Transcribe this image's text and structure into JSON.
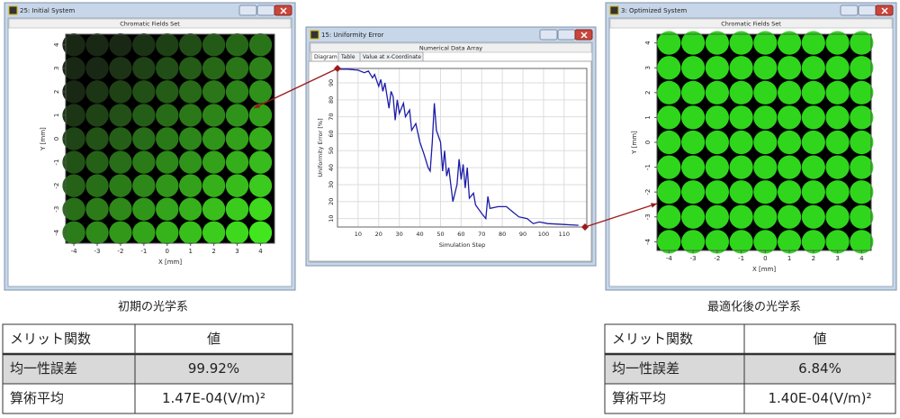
{
  "windows": [
    {
      "title": "25: Initial System",
      "header": "Chromatic Fields Set",
      "x_label": "X [mm]",
      "y_label": "Y [mm]",
      "xticks": [
        -4,
        -3,
        -2,
        -1,
        0,
        1,
        2,
        3,
        4
      ],
      "yticks": [
        -4,
        -3,
        -2,
        -1,
        0,
        1,
        2,
        3,
        4
      ],
      "xlim": [
        -4.35,
        4.6
      ],
      "ylim": [
        -4.45,
        4.45
      ]
    },
    {
      "title": "15: Uniformity Error",
      "header": "Numerical Data Array",
      "tabs": [
        "Diagram",
        "Table",
        "Value at x-Coordinate"
      ]
    },
    {
      "title": "3: Optimized System",
      "header": "Chromatic Fields Set",
      "x_label": "X [mm]",
      "y_label": "Y [mm]",
      "xticks": [
        -4,
        -3,
        -2,
        -1,
        0,
        1,
        2,
        3,
        4
      ],
      "yticks": [
        -4,
        -3,
        -2,
        -1,
        0,
        1,
        2,
        3,
        4
      ],
      "xlim": [
        -4.5,
        4.4
      ],
      "ylim": [
        -4.35,
        4.35
      ]
    }
  ],
  "chart_data": {
    "type": "line",
    "x_label": "Simulation Step",
    "y_label": "Uniformity Error [%]",
    "x": [
      0,
      5,
      10,
      13,
      15,
      17,
      18,
      20,
      21,
      22,
      23,
      25,
      26,
      27,
      28,
      29,
      30,
      32,
      33,
      35,
      36,
      38,
      40,
      42,
      44,
      45,
      46,
      47,
      48,
      50,
      51,
      52,
      53,
      54,
      55,
      56,
      58,
      59,
      60,
      61,
      62,
      63,
      64,
      66,
      67,
      70,
      72,
      73,
      74,
      78,
      82,
      85,
      88,
      92,
      95,
      98,
      102,
      110,
      117
    ],
    "series": [
      {
        "color": "#1c1ca8",
        "values": [
          98,
          98,
          97.5,
          96,
          97,
          93,
          95,
          88,
          92,
          85,
          90,
          75,
          85,
          82,
          68,
          80,
          72,
          78,
          70,
          74,
          62,
          66,
          55,
          48,
          40,
          38,
          55,
          78,
          62,
          55,
          38,
          50,
          35,
          40,
          30,
          20,
          30,
          45,
          33,
          42,
          28,
          40,
          22,
          25,
          18,
          13,
          10,
          23,
          16,
          17,
          17,
          14,
          11,
          10,
          7,
          8,
          7,
          6.5,
          6
        ]
      }
    ],
    "xlim": [
      0,
      121
    ],
    "ylim": [
      5,
      98.5
    ],
    "xticks": [
      10,
      20,
      30,
      40,
      50,
      60,
      70,
      80,
      90,
      100,
      110
    ],
    "yticks": [
      10,
      20,
      30,
      40,
      50,
      60,
      70,
      80,
      90
    ],
    "grid": true
  },
  "captions": [
    "初期の光学系",
    "最適化後の光学系"
  ],
  "tables": [
    {
      "header": [
        "メリット関数",
        "値"
      ],
      "rows": [
        [
          "均一性誤差",
          "99.92%"
        ],
        [
          "算術平均",
          "1.47E-04(V/m)²"
        ]
      ]
    },
    {
      "header": [
        "メリット関数",
        "値"
      ],
      "rows": [
        [
          "均一性誤差",
          "6.84%"
        ],
        [
          "算術平均",
          "1.40E-04(V/m)²"
        ]
      ]
    }
  ]
}
